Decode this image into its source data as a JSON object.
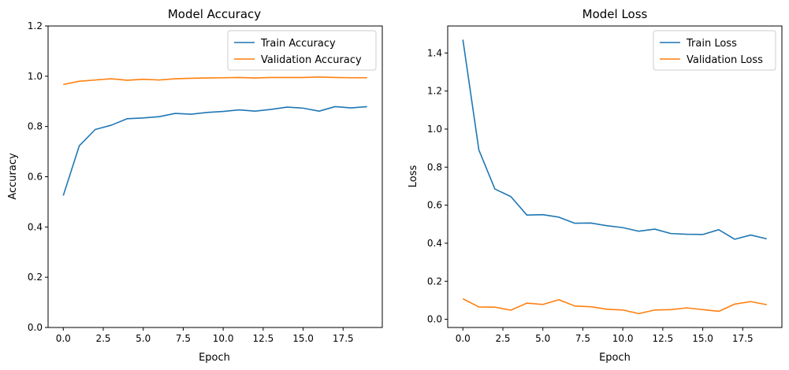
{
  "chart_data": [
    {
      "type": "line",
      "title": "Model Accuracy",
      "xlabel": "Epoch",
      "ylabel": "Accuracy",
      "xlim": [
        -0.95,
        19.95
      ],
      "ylim": [
        0,
        1.2
      ],
      "xticks": [
        0,
        2.5,
        5,
        7.5,
        10,
        12.5,
        15,
        17.5
      ],
      "xtick_labels": [
        "0.0",
        "2.5",
        "5.0",
        "7.5",
        "10.0",
        "12.5",
        "15.0",
        "17.5"
      ],
      "yticks": [
        0,
        0.2,
        0.4,
        0.6,
        0.8,
        1.0,
        1.2
      ],
      "ytick_labels": [
        "0.0",
        "0.2",
        "0.4",
        "0.6",
        "0.8",
        "1.0",
        "1.2"
      ],
      "legend_position": "top-right",
      "x": [
        0,
        1,
        2,
        3,
        4,
        5,
        6,
        7,
        8,
        9,
        10,
        11,
        12,
        13,
        14,
        15,
        16,
        17,
        18,
        19
      ],
      "series": [
        {
          "name": "Train Accuracy",
          "color": "#1f77b4",
          "values": [
            0.525,
            0.723,
            0.788,
            0.805,
            0.831,
            0.834,
            0.839,
            0.852,
            0.849,
            0.856,
            0.86,
            0.866,
            0.861,
            0.868,
            0.877,
            0.873,
            0.861,
            0.879,
            0.874,
            0.879
          ]
        },
        {
          "name": "Validation Accuracy",
          "color": "#ff7f0e",
          "values": [
            0.967,
            0.98,
            0.985,
            0.99,
            0.984,
            0.988,
            0.985,
            0.99,
            0.992,
            0.993,
            0.994,
            0.995,
            0.993,
            0.995,
            0.995,
            0.995,
            0.997,
            0.995,
            0.994,
            0.994
          ]
        }
      ]
    },
    {
      "type": "line",
      "title": "Model Loss",
      "xlabel": "Epoch",
      "ylabel": "Loss",
      "xlim": [
        -0.95,
        19.95
      ],
      "ylim": [
        -0.043,
        1.542
      ],
      "xticks": [
        0,
        2.5,
        5,
        7.5,
        10,
        12.5,
        15,
        17.5
      ],
      "xtick_labels": [
        "0.0",
        "2.5",
        "5.0",
        "7.5",
        "10.0",
        "12.5",
        "15.0",
        "17.5"
      ],
      "yticks": [
        0,
        0.2,
        0.4,
        0.6,
        0.8,
        1.0,
        1.2,
        1.4
      ],
      "ytick_labels": [
        "0.0",
        "0.2",
        "0.4",
        "0.6",
        "0.8",
        "1.0",
        "1.2",
        "1.4"
      ],
      "legend_position": "top-right",
      "x": [
        0,
        1,
        2,
        3,
        4,
        5,
        6,
        7,
        8,
        9,
        10,
        11,
        12,
        13,
        14,
        15,
        16,
        17,
        18,
        19
      ],
      "series": [
        {
          "name": "Train Loss",
          "color": "#1f77b4",
          "values": [
            1.47,
            0.89,
            0.685,
            0.645,
            0.548,
            0.55,
            0.537,
            0.505,
            0.506,
            0.492,
            0.482,
            0.463,
            0.474,
            0.451,
            0.447,
            0.446,
            0.471,
            0.421,
            0.443,
            0.423
          ]
        },
        {
          "name": "Validation Loss",
          "color": "#ff7f0e",
          "values": [
            0.108,
            0.065,
            0.064,
            0.048,
            0.085,
            0.078,
            0.103,
            0.07,
            0.066,
            0.053,
            0.049,
            0.03,
            0.049,
            0.051,
            0.06,
            0.051,
            0.042,
            0.08,
            0.093,
            0.077
          ]
        }
      ]
    }
  ]
}
